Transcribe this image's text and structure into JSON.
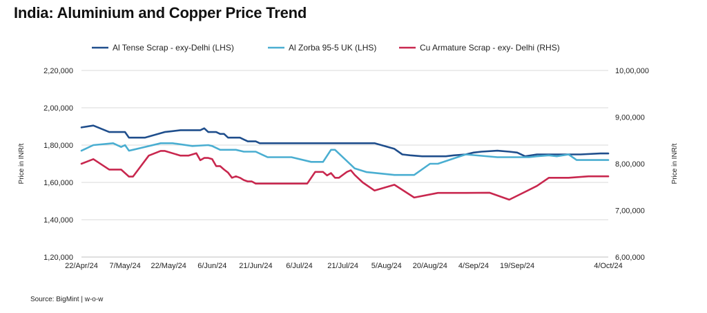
{
  "page": {
    "title": "India: Aluminium and Copper Price Trend",
    "source": "Source: BigMint | w-o-w"
  },
  "chart_data": {
    "type": "line",
    "title": "India: Aluminium and Copper Price Trend",
    "x_categories": [
      "22/Apr/24",
      "7/May/24",
      "22/May/24",
      "6/Jun/24",
      "21/Jun/24",
      "6/Jul/24",
      "21/Jul/24",
      "5/Aug/24",
      "20/Aug/24",
      "4/Sep/24",
      "19/Sep/24",
      "4/Oct/24"
    ],
    "left_axis": {
      "label": "Price in INR/t",
      "ylim": [
        120000,
        220000
      ],
      "ticks": [
        120000,
        140000,
        160000,
        180000,
        200000,
        220000
      ],
      "tick_labels": [
        "1,20,000",
        "1,40,000",
        "1,60,000",
        "1,80,000",
        "2,00,000",
        "2,20,000"
      ]
    },
    "right_axis": {
      "label": "Price in INR/t",
      "ylim": [
        600000,
        1000000
      ],
      "ticks": [
        600000,
        700000,
        800000,
        900000,
        1000000
      ],
      "tick_labels": [
        "6,00,000",
        "7,00,000",
        "8,00,000",
        "9,00,000",
        "10,00,000"
      ]
    },
    "grid": true,
    "legend_position": "top",
    "series": [
      {
        "name": "Al Tense Scrap - exy-Delhi (LHS)",
        "axis": "left",
        "color": "#1f4e8c",
        "x": [
          0,
          3,
          7,
          11,
          12,
          13,
          16,
          21,
          23,
          25,
          27,
          30,
          31,
          32,
          33,
          34,
          35,
          36,
          37,
          38,
          40,
          41,
          42,
          43,
          44,
          45,
          47,
          51,
          54,
          56,
          59,
          65,
          69,
          72,
          74,
          79,
          81,
          83,
          86,
          88,
          90,
          92,
          94,
          97,
          99,
          101,
          105,
          108,
          110,
          112,
          115,
          118,
          120,
          122,
          124,
          125,
          126,
          131,
          133
        ],
        "y": [
          189500,
          190500,
          187000,
          187000,
          184000,
          184000,
          184000,
          187000,
          187500,
          188000,
          188000,
          188000,
          189000,
          187000,
          187000,
          187000,
          186000,
          186000,
          184000,
          184000,
          184000,
          183000,
          182000,
          182000,
          182000,
          181000,
          181000,
          181000,
          181000,
          181000,
          181000,
          181000,
          181000,
          181000,
          181000,
          178000,
          175000,
          174500,
          174000,
          174000,
          174000,
          174000,
          174500,
          175000,
          176000,
          176500,
          177000,
          176500,
          176000,
          174000,
          175000,
          175000,
          175000,
          175000,
          175000,
          175000,
          175000,
          175500,
          175500
        ]
      },
      {
        "name": "Al Zorba 95-5 UK (LHS)",
        "axis": "left",
        "color": "#4aaed1",
        "x": [
          0,
          3,
          8,
          10,
          11,
          12,
          13,
          15,
          20,
          23,
          28,
          32,
          33,
          35,
          37,
          39,
          41,
          44,
          47,
          53,
          58,
          61,
          63,
          64,
          69,
          72,
          79,
          84,
          88,
          90,
          97,
          105,
          108,
          110,
          112,
          113,
          115,
          118,
          120,
          123,
          125,
          126,
          128,
          131,
          133
        ],
        "y": [
          177000,
          180000,
          181000,
          179000,
          180000,
          177000,
          177500,
          178500,
          181000,
          181000,
          179500,
          180000,
          179500,
          177500,
          177500,
          177500,
          176500,
          176500,
          173500,
          173500,
          171000,
          171000,
          177500,
          177500,
          167500,
          165500,
          164000,
          164000,
          170000,
          170000,
          175000,
          173500,
          173500,
          173500,
          173500,
          173500,
          174000,
          174500,
          174000,
          175000,
          172000,
          172000,
          172000,
          172000,
          172000
        ]
      },
      {
        "name": "Cu Armature Scrap - exy- Delhi (RHS)",
        "axis": "right",
        "color": "#c8274e",
        "x": [
          0,
          3,
          7,
          10,
          12,
          13,
          17,
          20,
          21,
          25,
          27,
          29,
          30,
          31,
          32,
          33,
          34,
          35,
          36,
          37,
          38,
          39,
          40,
          41,
          42,
          43,
          44,
          45,
          46,
          47,
          49,
          50,
          52,
          56,
          57,
          59,
          61,
          62,
          63,
          64,
          65,
          67,
          68,
          69,
          71,
          74,
          79,
          84,
          90,
          97,
          103,
          108,
          115,
          118,
          120,
          123,
          128,
          133
        ],
        "y": [
          800000,
          810000,
          787500,
          787500,
          772500,
          772500,
          817500,
          827500,
          827500,
          817500,
          817500,
          822500,
          807500,
          812500,
          812500,
          810000,
          795000,
          795000,
          787500,
          781000,
          770000,
          773000,
          770000,
          765000,
          762000,
          762000,
          757500,
          757500,
          757500,
          757500,
          757500,
          757500,
          757500,
          757500,
          757500,
          782500,
          782500,
          775000,
          780000,
          770000,
          770000,
          782500,
          786000,
          776000,
          760000,
          742500,
          755000,
          727500,
          737500,
          737500,
          738000,
          723000,
          752500,
          770000,
          770000,
          770000,
          773000,
          773000
        ]
      }
    ]
  },
  "layout_hint": {
    "x_points_total": 133
  }
}
